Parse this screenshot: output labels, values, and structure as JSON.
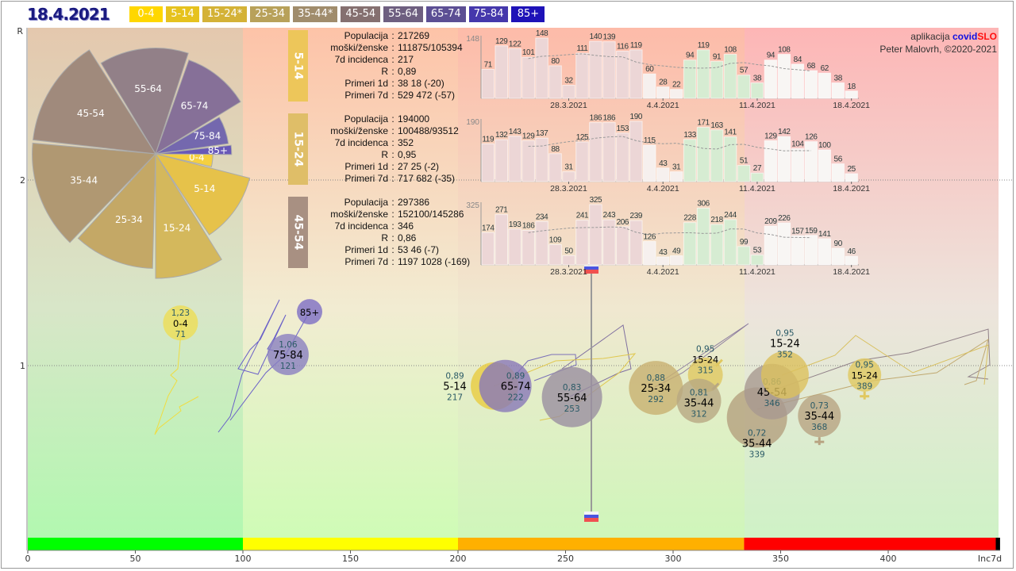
{
  "header": {
    "date": "18.4.2021"
  },
  "legend": [
    {
      "label": "0-4",
      "color": "#ffd700"
    },
    {
      "label": "5-14",
      "color": "#e6c21e"
    },
    {
      "label": "15-24*",
      "color": "#d4b237"
    },
    {
      "label": "25-34",
      "color": "#b8a15a"
    },
    {
      "label": "35-44*",
      "color": "#a08c6c"
    },
    {
      "label": "45-54",
      "color": "#857070"
    },
    {
      "label": "55-64",
      "color": "#6e5f80"
    },
    {
      "label": "65-74",
      "color": "#5c4f94"
    },
    {
      "label": "75-84",
      "color": "#4538ac"
    },
    {
      "label": "85+",
      "color": "#1e12b8"
    }
  ],
  "credits": {
    "app_prefix": "aplikacija",
    "app_name_a": "covid",
    "app_name_b": "SLO",
    "author": "Peter Malovrh, ©2020-2021"
  },
  "stat_keys": [
    "Populacija",
    "moški/ženske",
    "7d incidenca",
    "R",
    "Primeri 1d",
    "Primeri 7d"
  ],
  "panels": [
    {
      "group": "5-14",
      "color": "#edc65a",
      "values": [
        "217269",
        "111875/105394",
        "217",
        "0,89",
        "38 18 (-20)",
        "529 472 (-57)"
      ],
      "bars": [
        71,
        129,
        122,
        101,
        148,
        80,
        32,
        111,
        140,
        139,
        116,
        119,
        60,
        28,
        22,
        94,
        119,
        91,
        108,
        57,
        38,
        94,
        108,
        84,
        68,
        62,
        38,
        18
      ],
      "max_label": "148"
    },
    {
      "group": "15-24",
      "color": "#dfbe68",
      "values": [
        "194000",
        "100488/93512",
        "352",
        "0,95",
        "27 25 (-2)",
        "717 682 (-35)"
      ],
      "bars": [
        119,
        132,
        143,
        129,
        137,
        88,
        31,
        125,
        186,
        186,
        153,
        190,
        115,
        43,
        31,
        133,
        171,
        163,
        141,
        51,
        27,
        129,
        142,
        104,
        126,
        100,
        56,
        25
      ],
      "max_label": "190"
    },
    {
      "group": "45-54",
      "color": "#a89082",
      "values": [
        "297386",
        "152100/145286",
        "346",
        "0,86",
        "53 46 (-7)",
        "1197 1028 (-169)"
      ],
      "bars": [
        174,
        271,
        193,
        186,
        234,
        109,
        50,
        241,
        325,
        243,
        206,
        239,
        126,
        43,
        49,
        228,
        306,
        218,
        244,
        99,
        53,
        209,
        226,
        157,
        159,
        141,
        90,
        46
      ],
      "max_label": "325"
    }
  ],
  "bar_dates": [
    "28.3.2021",
    "4.4.2021",
    "11.4.2021",
    "18.4.2021"
  ],
  "chart_data": [
    {
      "type": "pie",
      "slices": [
        {
          "label": "0-4",
          "share_deg": 16,
          "relative_radius": 0.46,
          "color": "#f5d040"
        },
        {
          "label": "5-14",
          "share_deg": 42,
          "relative_radius": 0.78,
          "color": "#e6c24a"
        },
        {
          "label": "15-24",
          "share_deg": 32,
          "relative_radius": 1.0,
          "color": "#d4b85c"
        },
        {
          "label": "25-34",
          "share_deg": 41,
          "relative_radius": 0.92,
          "color": "#c4a866"
        },
        {
          "label": "35-44",
          "share_deg": 51,
          "relative_radius": 0.99,
          "color": "#b09872"
        },
        {
          "label": "45-54",
          "share_deg": 51,
          "relative_radius": 0.99,
          "color": "#a08a7c"
        },
        {
          "label": "55-64",
          "share_deg": 49,
          "relative_radius": 0.85,
          "color": "#928088"
        },
        {
          "label": "65-74",
          "share_deg": 39,
          "relative_radius": 0.8,
          "color": "#867098"
        },
        {
          "label": "75-84",
          "share_deg": 22,
          "relative_radius": 0.59,
          "color": "#7468ae"
        },
        {
          "label": "85+",
          "share_deg": 7,
          "relative_radius": 0.61,
          "color": "#6858b8"
        }
      ]
    },
    {
      "type": "scatter",
      "xlabel": "Inc7d",
      "ylabel": "R",
      "xlim": [
        0,
        452
      ],
      "ylim": [
        0,
        2.82
      ],
      "x_ticks": [
        "0",
        "50",
        "100",
        "150",
        "200",
        "250",
        "300",
        "350",
        "400"
      ],
      "y_ticks": [
        "1",
        "2"
      ],
      "bands": [
        {
          "from": 0,
          "to": 100,
          "color": "#00ff00"
        },
        {
          "from": 100,
          "to": 200,
          "color": "#ffff00"
        },
        {
          "from": 200,
          "to": 333,
          "color": "#ffb000"
        },
        {
          "from": 333,
          "to": 450,
          "color": "#ff0000"
        },
        {
          "from": 450,
          "to": 452,
          "color": "#000000"
        }
      ],
      "reference_inc": 262,
      "points": [
        {
          "label": "0-4",
          "R": 1.23,
          "R_text": "1,23",
          "inc": 71,
          "color": "#eedd55"
        },
        {
          "label": "85+",
          "R": 1.29,
          "R_text": "",
          "inc": 131,
          "color": "#7d6ec4"
        },
        {
          "label": "75-84",
          "R": 1.06,
          "R_text": "1,06",
          "inc": 121,
          "color": "#8a80c0"
        },
        {
          "label": "5-14",
          "R": 0.89,
          "R_text": "0,89",
          "inc": 217,
          "color": "#e8cc40"
        },
        {
          "label": "65-74",
          "R": 0.89,
          "R_text": "0,89",
          "inc": 222,
          "color": "#8878b8"
        },
        {
          "label": "55-64",
          "R": 0.83,
          "R_text": "0,83",
          "inc": 253,
          "color": "#9a8ea0"
        },
        {
          "label": "25-34",
          "R": 0.88,
          "R_text": "0,88",
          "inc": 292,
          "color": "#c8b070"
        },
        {
          "label": "15-24",
          "R": 0.95,
          "R_text": "0,95",
          "inc": 315,
          "color": "#e0c860",
          "marker": "male"
        },
        {
          "label": "35-44",
          "R": 0.81,
          "R_text": "0,81",
          "inc": 312,
          "color": "#b8a882",
          "marker": "male"
        },
        {
          "label": "35-44",
          "R": 0.72,
          "R_text": "0,72",
          "inc": 339,
          "color": "#b4a07e"
        },
        {
          "label": "45-54",
          "R": 0.86,
          "R_text": "0,86",
          "inc": 346,
          "color": "#a89890"
        },
        {
          "label": "15-24",
          "R": 0.95,
          "R_text": "0,95",
          "inc": 352,
          "color": "#dcc05c"
        },
        {
          "label": "35-44",
          "R": 0.73,
          "R_text": "0,73",
          "inc": 368,
          "color": "#b8a482",
          "marker": "female"
        },
        {
          "label": "15-24",
          "R": 0.95,
          "R_text": "0,95",
          "inc": 389,
          "color": "#e0c860",
          "marker": "female"
        }
      ]
    }
  ]
}
